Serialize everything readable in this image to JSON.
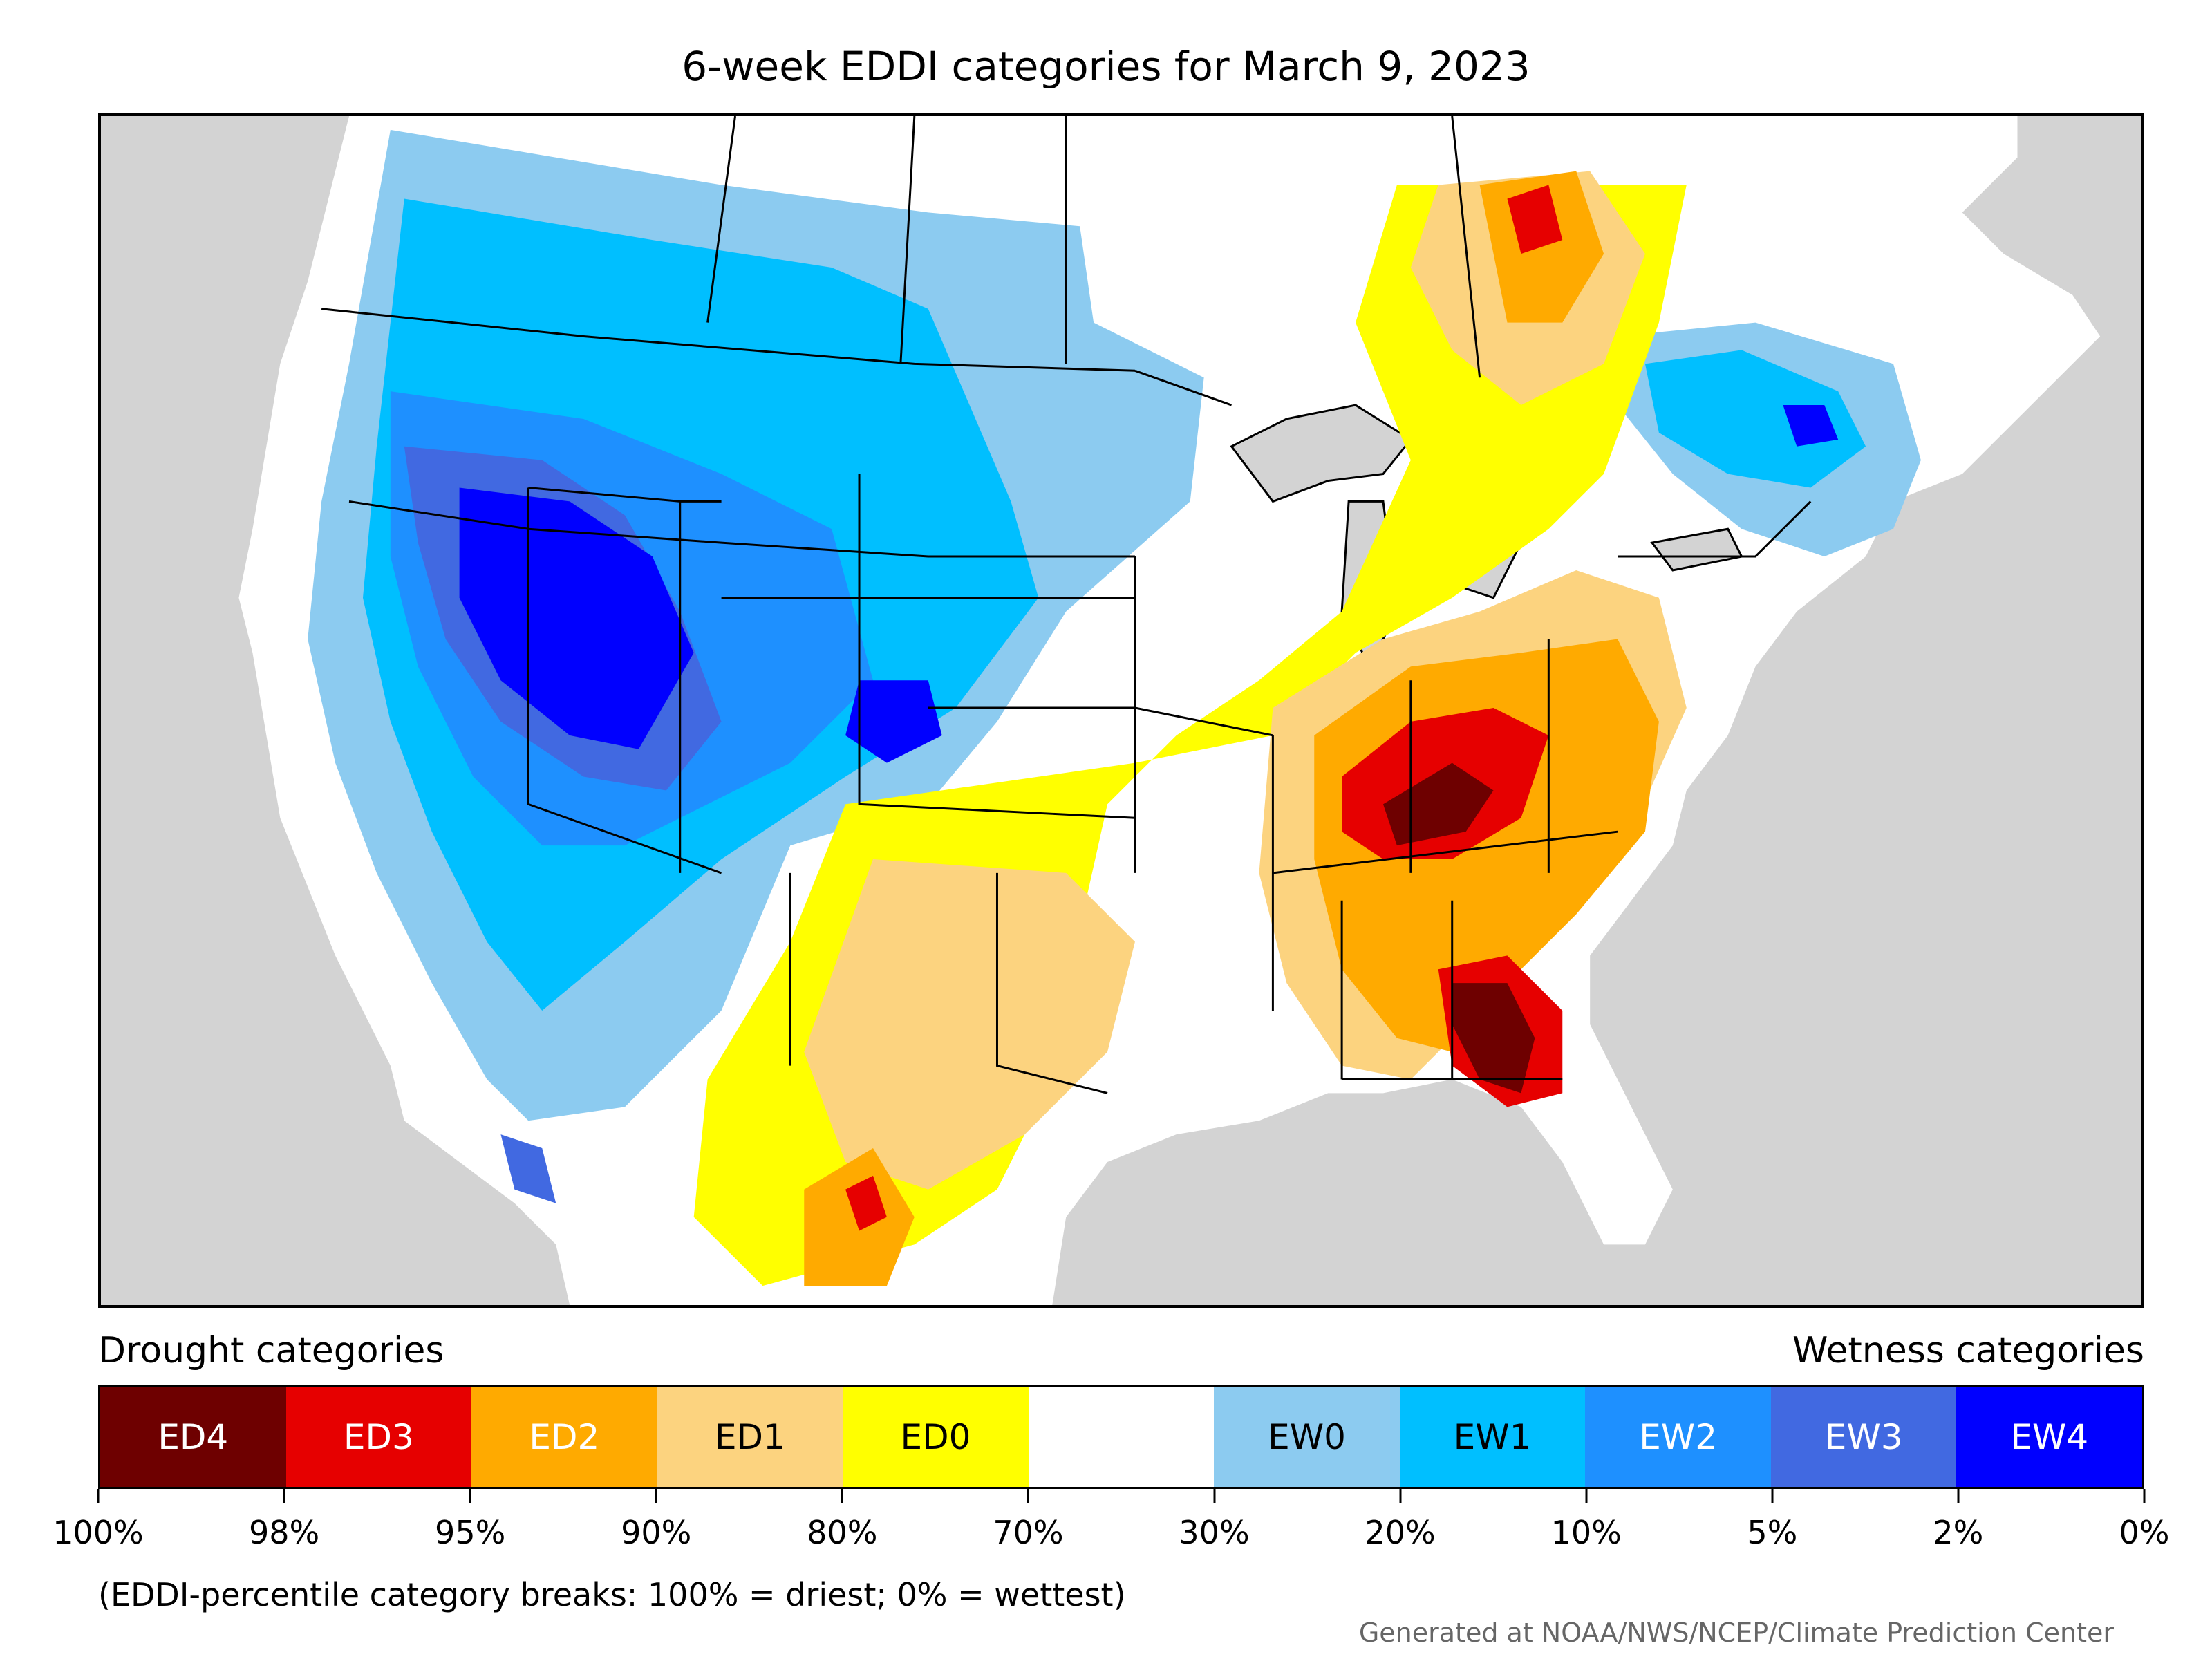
{
  "title": "6-week EDDI categories for March 9, 2023",
  "legend": {
    "left_label": "Drought categories",
    "right_label": "Wetness categories",
    "categories": [
      {
        "label": "ED4",
        "color": "#6e0000",
        "text_color": "#ffffff"
      },
      {
        "label": "ED3",
        "color": "#e60000",
        "text_color": "#ffffff"
      },
      {
        "label": "ED2",
        "color": "#ffaa00",
        "text_color": "#ffffff"
      },
      {
        "label": "ED1",
        "color": "#fcd37f",
        "text_color": "#000000"
      },
      {
        "label": "ED0",
        "color": "#ffff00",
        "text_color": "#000000"
      },
      {
        "label": "",
        "color": "#ffffff",
        "text_color": "#000000"
      },
      {
        "label": "EW0",
        "color": "#8ccbf0",
        "text_color": "#000000"
      },
      {
        "label": "EW1",
        "color": "#00bfff",
        "text_color": "#000000"
      },
      {
        "label": "EW2",
        "color": "#1e90ff",
        "text_color": "#ffffff"
      },
      {
        "label": "EW3",
        "color": "#4169e1",
        "text_color": "#ffffff"
      },
      {
        "label": "EW4",
        "color": "#0000ff",
        "text_color": "#ffffff"
      }
    ],
    "breaks": [
      "100%",
      "98%",
      "95%",
      "90%",
      "80%",
      "70%",
      "30%",
      "20%",
      "10%",
      "5%",
      "2%",
      "0%"
    ]
  },
  "footnote": "(EDDI-percentile category breaks: 100% = driest; 0% = wettest)",
  "credit": "Generated at NOAA/NWS/NCEP/Climate Prediction Center",
  "map": {
    "background_color": "#d3d3d3",
    "land_color": "#ffffff"
  }
}
